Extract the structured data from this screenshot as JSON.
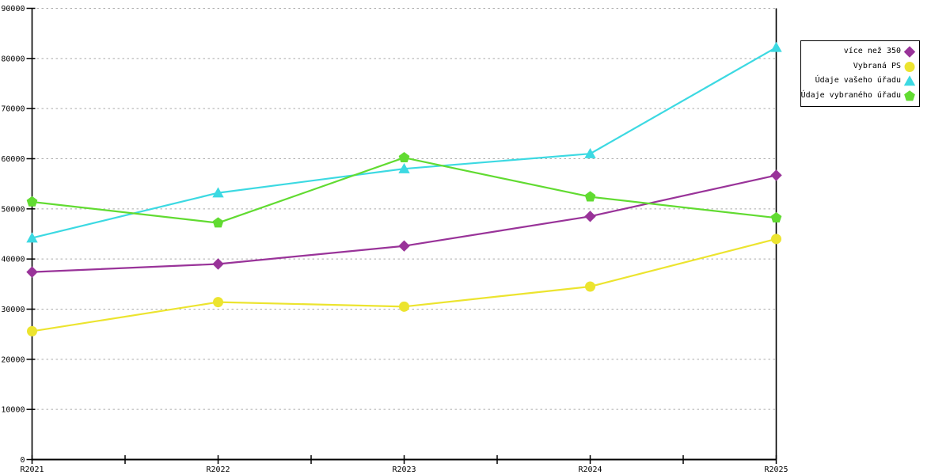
{
  "chart_data": {
    "type": "line",
    "title": "",
    "xlabel": "",
    "ylabel": "",
    "categories": [
      "R2021",
      "R2022",
      "R2023",
      "R2024",
      "R2025"
    ],
    "series": [
      {
        "name": "více než 350",
        "marker": "diamond",
        "color": "#993399",
        "values": [
          37400,
          39000,
          42600,
          48500,
          56700
        ]
      },
      {
        "name": "Vybraná PS",
        "marker": "circle",
        "color": "#ECE42F",
        "values": [
          25600,
          31400,
          30500,
          34500,
          44000
        ]
      },
      {
        "name": "Údaje vašeho úřadu",
        "marker": "triangle",
        "color": "#3CD9E2",
        "values": [
          44200,
          53200,
          58000,
          61000,
          82200
        ]
      },
      {
        "name": "Údaje vybraného úřadu",
        "marker": "pentagon",
        "color": "#61DB31",
        "values": [
          51400,
          47200,
          60200,
          52400,
          48200
        ]
      }
    ],
    "ylim": [
      0,
      90000
    ],
    "ytick_step": 10000,
    "y_tick_labels": [
      "0",
      "10000",
      "20000",
      "30000",
      "40000",
      "50000",
      "60000",
      "70000",
      "80000",
      "90000"
    ],
    "grid": "horizontal-dashed",
    "x_minor_ticks": "midpoints-between-categories",
    "legend_position": "top-right"
  },
  "colors": {
    "background": "#FFFFFF",
    "axis": "#000000",
    "gridline": "#ABABAB",
    "legend_border": "#000000",
    "text": "#000000"
  }
}
